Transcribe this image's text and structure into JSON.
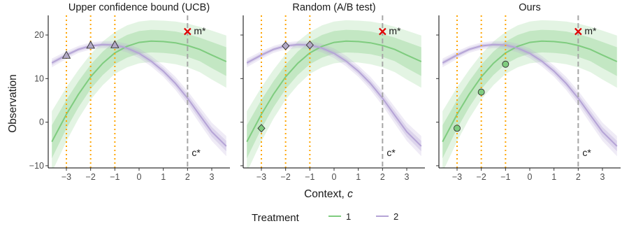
{
  "chart_data": {
    "type": "line",
    "x_label_text": "Context, ",
    "x_label_var": "c",
    "y_label": "Observation",
    "xlim": [
      -3.75,
      3.75
    ],
    "ylim": [
      -10.5,
      24.5
    ],
    "x_ticks": [
      -3,
      -2,
      -1,
      0,
      1,
      2,
      3
    ],
    "x_tick_labels": [
      "−3",
      "−2",
      "−1",
      "0",
      "1",
      "2",
      "3"
    ],
    "y_ticks": [
      -10,
      0,
      10,
      20
    ],
    "y_tick_labels": [
      "−10",
      "0",
      "10",
      "20"
    ],
    "grid": false,
    "legend": {
      "title": "Treatment",
      "position": "bottom",
      "entries": [
        {
          "label": "1",
          "color": "#7fcc7f"
        },
        {
          "label": "2",
          "color": "#b5a4d6"
        }
      ]
    },
    "series": [
      {
        "name": "1",
        "color": "#7fcc7f",
        "x": [
          -3.6,
          -3.0,
          -2.5,
          -2.0,
          -1.5,
          -1.0,
          -0.5,
          0.0,
          0.5,
          1.0,
          1.5,
          2.0,
          2.5,
          3.0,
          3.6
        ],
        "mean": [
          -4.5,
          1.8,
          6.4,
          10.4,
          13.5,
          15.9,
          17.4,
          18.3,
          18.6,
          18.5,
          18.2,
          17.6,
          16.7,
          15.4,
          13.9
        ],
        "inner": [
          3.8,
          3.3,
          3.0,
          2.8,
          2.7,
          2.6,
          2.6,
          2.6,
          2.6,
          2.6,
          2.6,
          2.6,
          2.7,
          3.0,
          3.3
        ],
        "outer": [
          7.0,
          6.2,
          5.6,
          5.2,
          5.0,
          4.8,
          4.8,
          4.8,
          4.8,
          4.8,
          4.9,
          5.0,
          5.2,
          5.6,
          6.0
        ]
      },
      {
        "name": "2",
        "color": "#b5a4d6",
        "x": [
          -3.6,
          -3.0,
          -2.5,
          -2.0,
          -1.5,
          -1.0,
          -0.5,
          0.0,
          0.5,
          1.0,
          1.5,
          2.0,
          2.5,
          3.0,
          3.6
        ],
        "mean": [
          13.6,
          15.4,
          16.7,
          17.5,
          17.8,
          17.7,
          17.0,
          15.8,
          14.0,
          11.7,
          8.9,
          5.5,
          1.6,
          -2.2,
          -5.5
        ],
        "inner": [
          0.5,
          0.45,
          0.4,
          0.4,
          0.4,
          0.45,
          0.5,
          0.55,
          0.6,
          0.7,
          0.8,
          0.9,
          1.0,
          1.1,
          1.2
        ],
        "outer": [
          1.0,
          0.9,
          0.8,
          0.8,
          0.8,
          0.9,
          1.0,
          1.1,
          1.2,
          1.3,
          1.5,
          1.7,
          1.9,
          2.1,
          2.3
        ]
      }
    ],
    "panels": [
      {
        "title": "Upper confidence bound (UCB)",
        "points": [
          {
            "x": -3,
            "y": 15.3,
            "shape": "triangle",
            "treatment": "2"
          },
          {
            "x": -2,
            "y": 17.6,
            "shape": "triangle",
            "treatment": "2"
          },
          {
            "x": -1,
            "y": 17.7,
            "shape": "triangle",
            "treatment": "2"
          }
        ]
      },
      {
        "title": "Random (A/B test)",
        "points": [
          {
            "x": -3,
            "y": -1.4,
            "shape": "diamond",
            "treatment": "1"
          },
          {
            "x": -2,
            "y": 17.5,
            "shape": "diamond",
            "treatment": "2"
          },
          {
            "x": -1,
            "y": 17.7,
            "shape": "diamond",
            "treatment": "2"
          }
        ]
      },
      {
        "title": "Ours",
        "points": [
          {
            "x": -3,
            "y": -1.4,
            "shape": "circle",
            "treatment": "1"
          },
          {
            "x": -2,
            "y": 6.9,
            "shape": "circle",
            "treatment": "1"
          },
          {
            "x": -1,
            "y": 13.3,
            "shape": "circle",
            "treatment": "1"
          }
        ]
      }
    ],
    "vlines_dotted": {
      "x": [
        -3,
        -2,
        -1
      ],
      "color": "#ffa500"
    },
    "vline_dashed": {
      "x": 2,
      "color": "#a6a6a6",
      "label": "c*",
      "label_y": -7.0
    },
    "optimum_marker": {
      "x": 2,
      "y": 20.8,
      "label": "m*",
      "color": "#e00000"
    }
  }
}
